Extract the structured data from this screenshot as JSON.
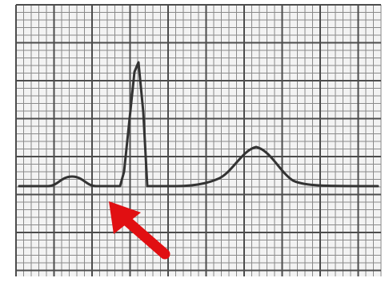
{
  "image": {
    "subject": "ecg-strip-segment",
    "colors": {
      "background": "#ffffff",
      "paper": "#f3f3f3",
      "grid_minor": "#8a8a8a",
      "grid_major": "#4c4c4c",
      "trace": "#333333",
      "arrow": "#e10f12"
    },
    "arrow": {
      "icon": "arrow-up-left-icon",
      "indicates": "pr-segment"
    }
  }
}
